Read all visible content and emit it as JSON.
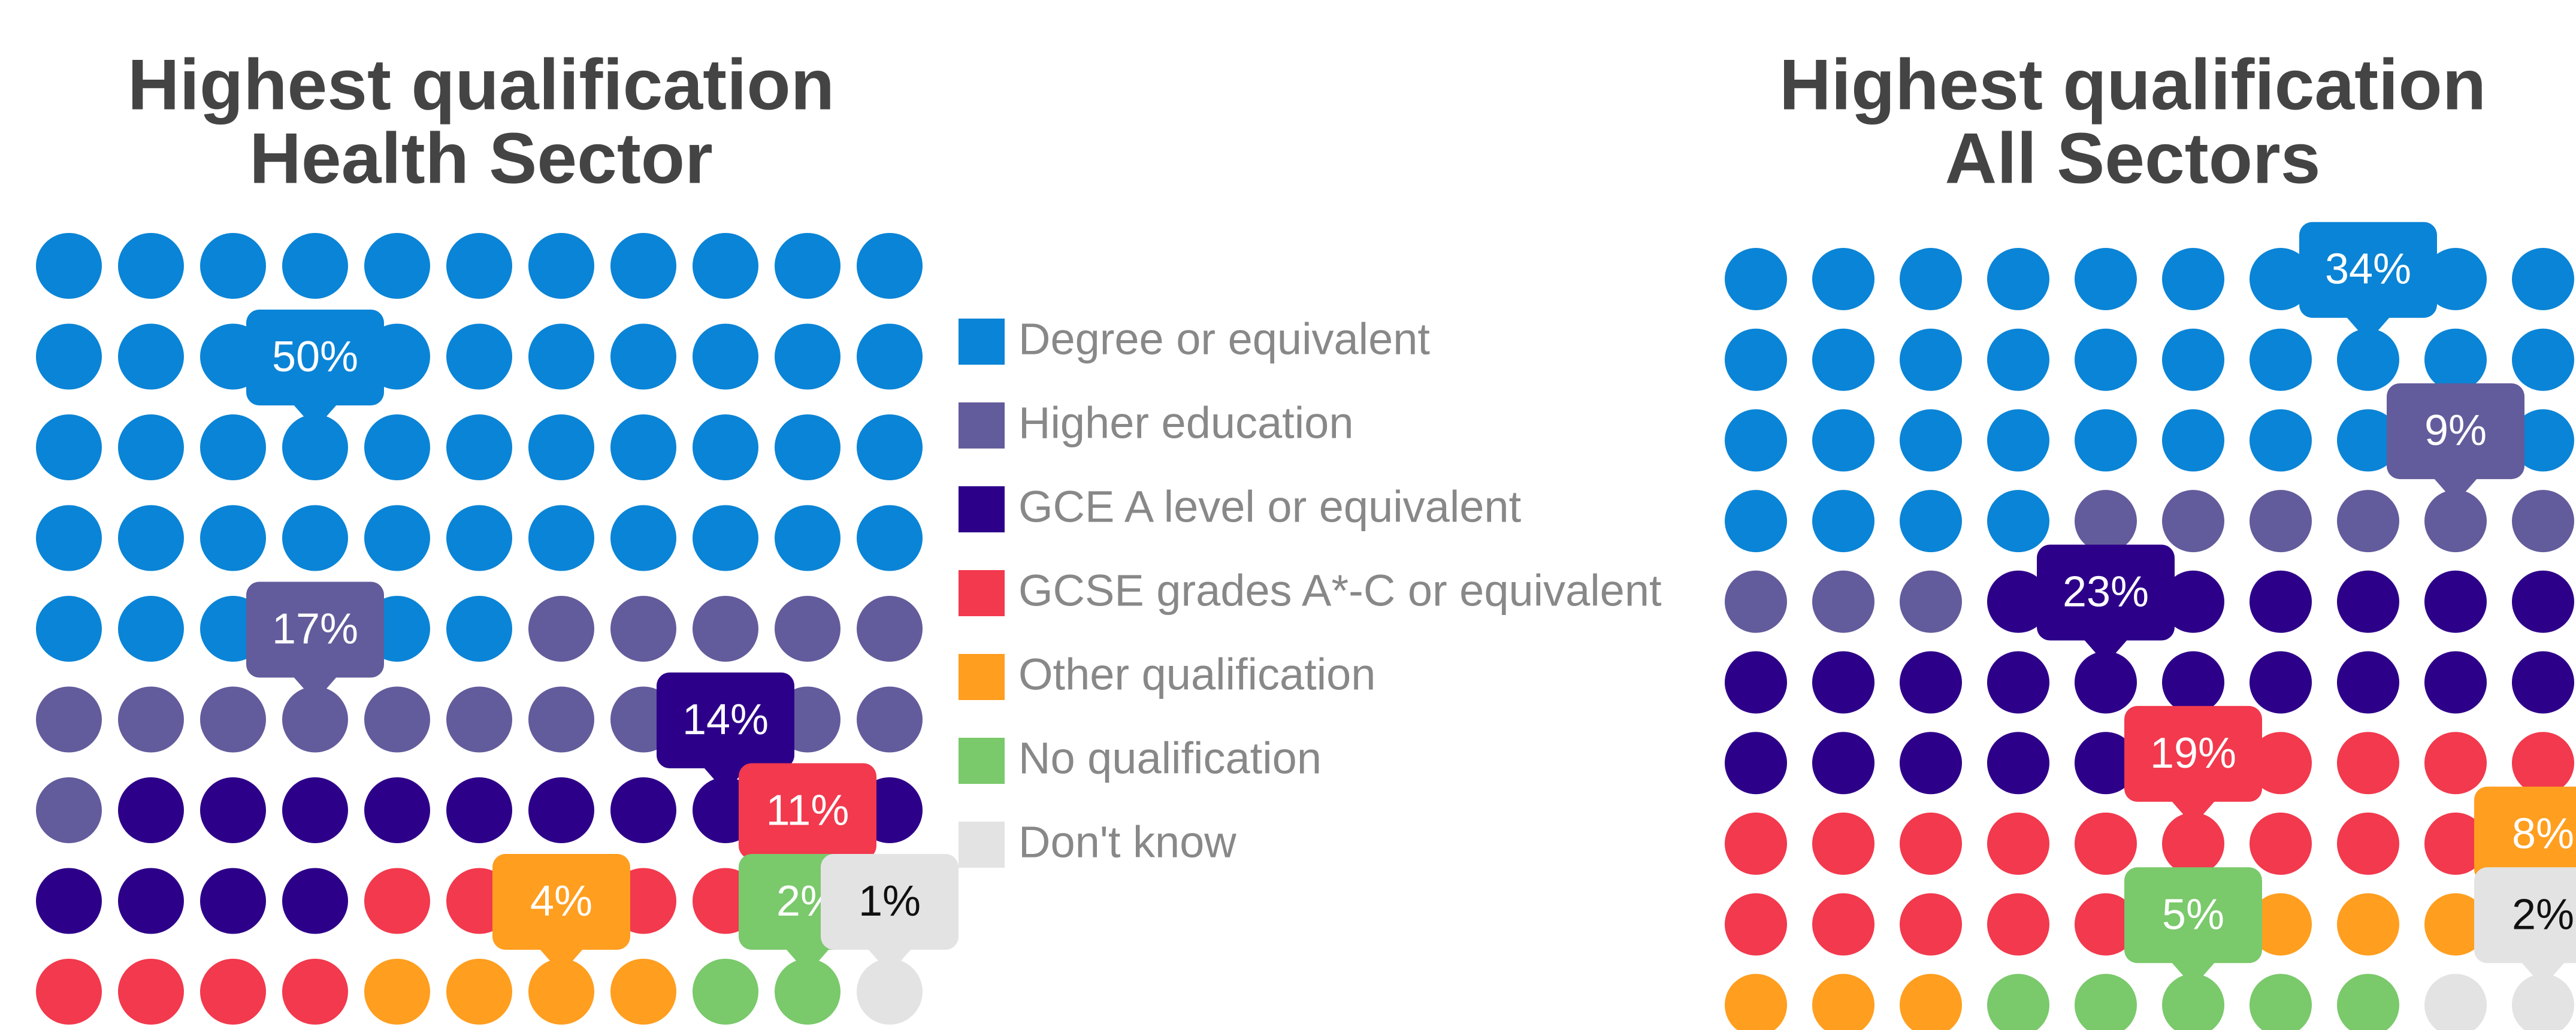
{
  "chart_data": [
    {
      "type": "waffle",
      "title": "Highest qualification",
      "subtitle": "Health Sector",
      "categories": [
        "Degree or equivalent",
        "Higher education",
        "GCE A level or equivalent",
        "GCSE grades A*-C or equivalent",
        "Other qualification",
        "No qualification",
        "Don't know"
      ],
      "values": [
        50,
        17,
        14,
        11,
        4,
        2,
        1
      ],
      "value_labels": [
        "50%",
        "17%",
        "14%",
        "11%",
        "4%",
        "2%",
        "1%"
      ],
      "colors": [
        "#0a84d6",
        "#625c9c",
        "#2d0089",
        "#f2394d",
        "#ff9e1f",
        "#7ac96b",
        "#e3e3e3"
      ],
      "legend": true
    },
    {
      "type": "waffle",
      "title": "Highest qualification",
      "subtitle": "All Sectors",
      "categories": [
        "Degree or equivalent",
        "Higher education",
        "GCE A level or equivalent",
        "GCSE grades A*-C or equivalent",
        "Other qualification",
        "No qualification",
        "Don't know"
      ],
      "values": [
        34,
        9,
        23,
        19,
        8,
        5,
        2
      ],
      "value_labels": [
        "34%",
        "9%",
        "23%",
        "19%",
        "8%",
        "5%",
        "2%"
      ],
      "colors": [
        "#0a84d6",
        "#625c9c",
        "#2d0089",
        "#f2394d",
        "#ff9e1f",
        "#7ac96b",
        "#e3e3e3"
      ],
      "legend": false
    }
  ]
}
